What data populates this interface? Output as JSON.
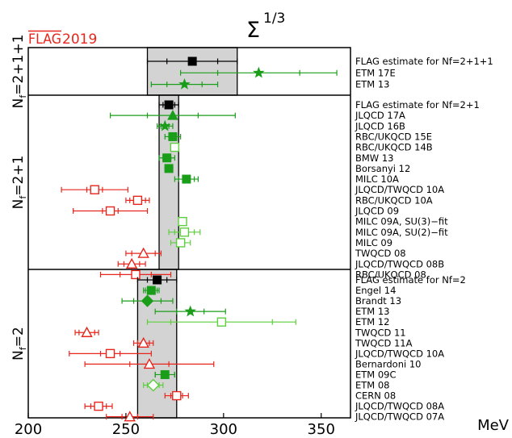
{
  "chart_data": {
    "type": "scatter",
    "title_base": "Σ",
    "title_exp": "1/3",
    "logo_flag": "FLAG",
    "logo_year": "2019",
    "xlabel": "MeV",
    "xlim": [
      200,
      365
    ],
    "xticks": [
      200,
      250,
      300,
      350
    ],
    "grid": false,
    "bands": [
      {
        "name": "N_f=2+1+1",
        "label_main": "N",
        "label_sub": "f",
        "label_rest": "=2+1+1",
        "flag_value": 284,
        "flag_err": 23
      },
      {
        "name": "N_f=2+1",
        "label_main": "N",
        "label_sub": "f",
        "label_rest": "=2+1",
        "flag_value": 272,
        "flag_err": 5
      },
      {
        "name": "N_f=2",
        "label_main": "N",
        "label_sub": "f",
        "label_rest": "=2",
        "flag_value": 266,
        "flag_err": 10
      }
    ],
    "points": [
      {
        "label": "FLAG estimate for Nf=2+1+1",
        "band": 0,
        "row": 0,
        "x": 284,
        "err_stat": 13,
        "err_tot": 23,
        "marker": "square",
        "color": "black",
        "fill": "filled"
      },
      {
        "label": "ETM 17E",
        "band": 0,
        "row": 1,
        "x": 318,
        "err_stat": 21,
        "err_tot": 40,
        "marker": "star",
        "color": "green",
        "fill": "filled"
      },
      {
        "label": "ETM 13",
        "band": 0,
        "row": 2,
        "x": 280,
        "err_stat": 9,
        "err_tot": 17,
        "marker": "star",
        "color": "green",
        "fill": "filled"
      },
      {
        "label": "FLAG estimate for Nf=2+1",
        "band": 1,
        "row": 0,
        "x": 272,
        "err_stat": 3,
        "err_tot": 5,
        "marker": "square",
        "color": "black",
        "fill": "filled"
      },
      {
        "label": "JLQCD 17A",
        "band": 1,
        "row": 1,
        "x": 274,
        "err_stat": 13,
        "err_tot": 32,
        "marker": "triangle",
        "color": "green",
        "fill": "filled"
      },
      {
        "label": "JLQCD 16B",
        "band": 1,
        "row": 2,
        "x": 270,
        "err_stat": 2,
        "err_tot": 4,
        "marker": "star",
        "color": "green",
        "fill": "filled"
      },
      {
        "label": "RBC/UKQCD 15E",
        "band": 1,
        "row": 3,
        "x": 274,
        "err_stat": 2,
        "err_tot": 4,
        "marker": "square",
        "color": "green",
        "fill": "filled"
      },
      {
        "label": "RBC/UKQCD 14B",
        "band": 1,
        "row": 4,
        "x": 275,
        "err_stat": 1,
        "err_tot": 2,
        "marker": "square",
        "color": "lightgreen",
        "fill": "open"
      },
      {
        "label": "BMW 13",
        "band": 1,
        "row": 5,
        "x": 271,
        "err_stat": 2,
        "err_tot": 4,
        "marker": "square",
        "color": "green",
        "fill": "filled"
      },
      {
        "label": "Borsanyi 12",
        "band": 1,
        "row": 6,
        "x": 272,
        "err_stat": 1,
        "err_tot": 2,
        "marker": "square",
        "color": "green",
        "fill": "filled"
      },
      {
        "label": "MILC 10A",
        "band": 1,
        "row": 7,
        "x": 281,
        "err_stat": 4,
        "err_tot": 6,
        "marker": "square",
        "color": "green",
        "fill": "filled"
      },
      {
        "label": "JLQCD/TWQCD 10A",
        "band": 1,
        "row": 8,
        "x": 234,
        "err_stat": 4,
        "err_tot": 17,
        "marker": "square",
        "color": "red",
        "fill": "open"
      },
      {
        "label": "RBC/UKQCD 10A",
        "band": 1,
        "row": 9,
        "x": 256,
        "err_stat": 4,
        "err_tot": 6,
        "marker": "square",
        "color": "red",
        "fill": "open"
      },
      {
        "label": "JLQCD 09",
        "band": 1,
        "row": 10,
        "x": 242,
        "err_stat": 4,
        "err_tot": 19,
        "marker": "square",
        "color": "red",
        "fill": "open"
      },
      {
        "label": "MILC 09A, SU(3)−fit",
        "band": 1,
        "row": 11,
        "x": 279,
        "err_stat": 1,
        "err_tot": 2,
        "marker": "square",
        "color": "lightgreen",
        "fill": "open"
      },
      {
        "label": "MILC 09A, SU(2)−fit",
        "band": 1,
        "row": 12,
        "x": 280,
        "err_stat": 5,
        "err_tot": 8,
        "marker": "square",
        "color": "lightgreen",
        "fill": "open"
      },
      {
        "label": "MILC 09",
        "band": 1,
        "row": 13,
        "x": 278,
        "err_stat": 2,
        "err_tot": 5,
        "marker": "square",
        "color": "lightgreen",
        "fill": "open"
      },
      {
        "label": "TWQCD 08",
        "band": 1,
        "row": 14,
        "x": 259,
        "err_stat": 6,
        "err_tot": 9,
        "marker": "triangle",
        "color": "red",
        "fill": "open"
      },
      {
        "label": "JLQCD/TWQCD 08B",
        "band": 1,
        "row": 15,
        "x": 253,
        "err_stat": 4,
        "err_tot": 7,
        "marker": "triangle",
        "color": "red",
        "fill": "open"
      },
      {
        "label": "RBC/UKQCD 08",
        "band": 1,
        "row": 16,
        "x": 255,
        "err_stat": 8,
        "err_tot": 18,
        "marker": "square",
        "color": "red",
        "fill": "open"
      },
      {
        "label": "FLAG estimate for Nf=2",
        "band": 2,
        "row": 0,
        "x": 266,
        "err_stat": 5,
        "err_tot": 10,
        "marker": "square",
        "color": "black",
        "fill": "filled"
      },
      {
        "label": "Engel 14",
        "band": 2,
        "row": 1,
        "x": 263,
        "err_stat": 3,
        "err_tot": 4,
        "marker": "square",
        "color": "green",
        "fill": "filled"
      },
      {
        "label": "Brandt 13",
        "band": 2,
        "row": 2,
        "x": 261,
        "err_stat": 7,
        "err_tot": 13,
        "marker": "diamond",
        "color": "green",
        "fill": "filled"
      },
      {
        "label": "ETM 13",
        "band": 2,
        "row": 3,
        "x": 283,
        "err_stat": 7,
        "err_tot": 18,
        "marker": "star",
        "color": "green",
        "fill": "filled"
      },
      {
        "label": "ETM 12",
        "band": 2,
        "row": 4,
        "x": 299,
        "err_stat": 26,
        "err_tot": 38,
        "marker": "square",
        "color": "lightgreen",
        "fill": "open"
      },
      {
        "label": "TWQCD 11",
        "band": 2,
        "row": 5,
        "x": 230,
        "err_stat": 4,
        "err_tot": 6,
        "marker": "triangle",
        "color": "red",
        "fill": "open"
      },
      {
        "label": "TWQCD 11A",
        "band": 2,
        "row": 6,
        "x": 259,
        "err_stat": 3,
        "err_tot": 5,
        "marker": "triangle",
        "color": "red",
        "fill": "open"
      },
      {
        "label": "JLQCD/TWQCD 10A",
        "band": 2,
        "row": 7,
        "x": 242,
        "err_stat": 5,
        "err_tot": 21,
        "marker": "square",
        "color": "red",
        "fill": "open"
      },
      {
        "label": "Bernardoni 10",
        "band": 2,
        "row": 8,
        "x": 262,
        "err_stat": 10,
        "err_tot": 33,
        "marker": "triangle",
        "color": "red",
        "fill": "open"
      },
      {
        "label": "ETM 09C",
        "band": 2,
        "row": 9,
        "x": 270,
        "err_stat": 5,
        "err_tot": 5,
        "marker": "square",
        "color": "green",
        "fill": "filled"
      },
      {
        "label": "ETM 08",
        "band": 2,
        "row": 10,
        "x": 264,
        "err_stat": 3,
        "err_tot": 5,
        "marker": "diamond",
        "color": "lightgreen",
        "fill": "open"
      },
      {
        "label": "CERN 08",
        "band": 2,
        "row": 11,
        "x": 276,
        "err_stat": 3,
        "err_tot": 6,
        "marker": "square",
        "color": "red",
        "fill": "open"
      },
      {
        "label": "JLQCD/TWQCD 08A",
        "band": 2,
        "row": 12,
        "x": 236,
        "err_stat": 4,
        "err_tot": 7,
        "marker": "square",
        "color": "red",
        "fill": "open"
      },
      {
        "label": "JLQCD/TWQCD 07A",
        "band": 2,
        "row": 13,
        "x": 252,
        "err_stat": 4,
        "err_tot": 12,
        "marker": "triangle",
        "color": "red",
        "fill": "open"
      }
    ],
    "colors": {
      "green": "#1a9e1a",
      "lightgreen": "#5ccf3c",
      "red": "#e8251c",
      "black": "#000000",
      "band_fill": "#d3d3d3",
      "flag_red": "#e8251c"
    }
  }
}
